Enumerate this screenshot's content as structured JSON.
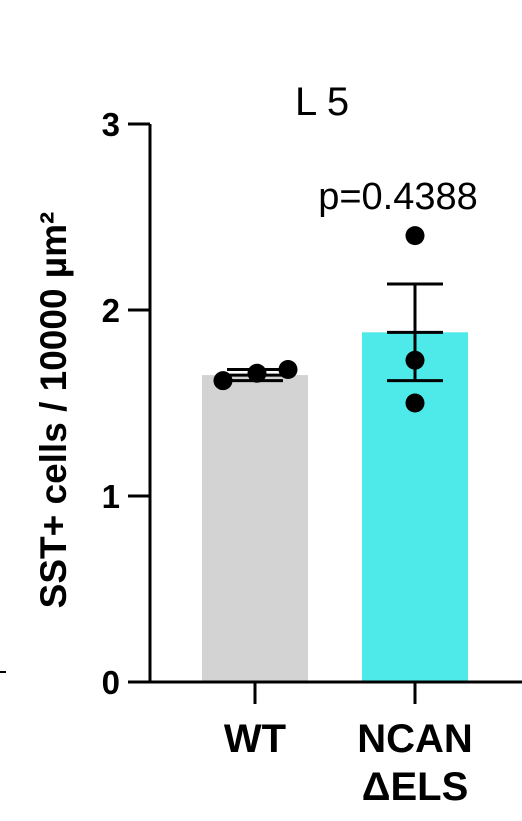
{
  "chart_data": {
    "type": "bar",
    "title": "L 5",
    "ylabel": "SST+ cells / 10000 µm²",
    "xlabel": "",
    "ylim": [
      0,
      3
    ],
    "yticks": [
      "0",
      "1",
      "2",
      "3"
    ],
    "categories": [
      {
        "line1": "WT",
        "line2": ""
      },
      {
        "line1": "NCAN",
        "line2": "ΔELS"
      }
    ],
    "values": [
      1.65,
      1.88
    ],
    "error": [
      {
        "low": 1.62,
        "high": 1.68
      },
      {
        "low": 1.62,
        "high": 2.14
      }
    ],
    "points": [
      [
        1.62,
        1.68,
        1.66
      ],
      [
        2.4,
        1.73,
        1.5
      ]
    ],
    "annotation": "p=0.4388",
    "colors": {
      "bars": [
        "#d3d3d3",
        "#4ee9e9"
      ],
      "points": "#000000",
      "axis": "#000000"
    }
  }
}
